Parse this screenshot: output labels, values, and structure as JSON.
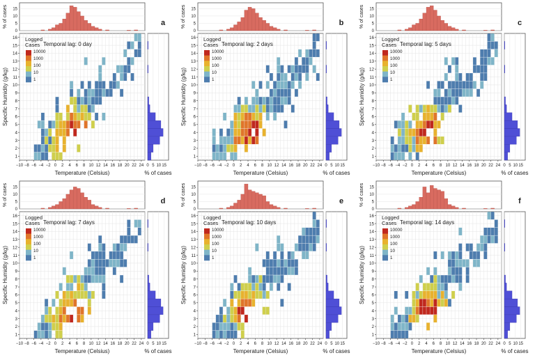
{
  "figure": {
    "x_axis_label": "Temperature (Celsius)",
    "y_axis_label": "Specific Humidity (g/kg)",
    "top_hist_label": "% of cases",
    "side_hist_label": "% of cases",
    "legend_title": "Logged\nCases",
    "legend_levels": [
      "10000",
      "1000",
      "100",
      "10",
      "1"
    ],
    "colors": {
      "scale": [
        "#4e7dae",
        "#7fb5c8",
        "#cfcf4c",
        "#e8b22e",
        "#e0752a",
        "#c0281e"
      ],
      "hist_top": "#d86b60",
      "hist_side": "#4f4fd6",
      "grid": "#e4e4e4",
      "frame": "#555555"
    }
  },
  "chart_data": [
    {
      "type": "heatmap",
      "panel_letter": "a",
      "lag_label": "Temporal lag: 0 day",
      "x_ticks": [
        -10,
        -8,
        -6,
        -4,
        -2,
        0,
        2,
        4,
        6,
        8,
        10,
        12,
        14,
        16,
        18,
        20,
        22,
        24
      ],
      "y_ticks": [
        1,
        2,
        3,
        4,
        5,
        6,
        7,
        8,
        9,
        10,
        11,
        12,
        13,
        14,
        15,
        16
      ],
      "top_hist_ticks": [
        0,
        5,
        10,
        15
      ],
      "side_hist_ticks": [
        0,
        5,
        10,
        15
      ],
      "xlim": [
        -10,
        25
      ],
      "ylim": [
        0.5,
        16.5
      ],
      "top_hist": {
        "x": [
          -4,
          -2,
          -1,
          0,
          1,
          2,
          3,
          4,
          5,
          6,
          7,
          8,
          9,
          10,
          11,
          12,
          14,
          20,
          22
        ],
        "values": [
          0.5,
          1,
          2,
          4,
          5,
          8,
          12,
          17,
          16,
          13,
          10,
          7,
          5,
          3,
          2,
          1,
          0.5,
          0.3,
          0.5
        ]
      },
      "side_hist": {
        "y": [
          1,
          2,
          3,
          4,
          5,
          6,
          7,
          8,
          12,
          15
        ],
        "values": [
          3,
          5,
          11,
          14,
          12,
          7,
          2,
          1,
          0.5,
          0.5
        ]
      }
    },
    {
      "type": "heatmap",
      "panel_letter": "b",
      "lag_label": "Temporal lag: 2 days",
      "x_ticks": [
        -10,
        -8,
        -6,
        -4,
        -2,
        0,
        2,
        4,
        6,
        8,
        10,
        12,
        14,
        16,
        18,
        20,
        22,
        24
      ],
      "y_ticks": [
        1,
        2,
        3,
        4,
        5,
        6,
        7,
        8,
        9,
        10,
        11,
        12,
        13,
        14,
        15,
        16
      ],
      "top_hist_ticks": [
        0,
        5,
        10,
        15
      ],
      "side_hist_ticks": [
        0,
        5,
        10,
        15
      ],
      "xlim": [
        -10,
        25
      ],
      "ylim": [
        0.5,
        16.5
      ],
      "top_hist": {
        "x": [
          -4,
          -2,
          -1,
          0,
          1,
          2,
          3,
          4,
          5,
          6,
          7,
          8,
          9,
          10,
          11,
          12,
          14,
          20,
          22
        ],
        "values": [
          0.5,
          1,
          2,
          4,
          6,
          9,
          14,
          16,
          15,
          12,
          9,
          7,
          5,
          3,
          2,
          1,
          0.5,
          0.3,
          0.5
        ]
      },
      "side_hist": {
        "y": [
          1,
          2,
          3,
          4,
          5,
          6,
          7,
          8,
          12,
          15
        ],
        "values": [
          3,
          5,
          11,
          14,
          12,
          7,
          2,
          1,
          0.5,
          0.5
        ]
      }
    },
    {
      "type": "heatmap",
      "panel_letter": "c",
      "lag_label": "Temporal lag: 5 days",
      "x_ticks": [
        -10,
        -8,
        -6,
        -4,
        -2,
        0,
        2,
        4,
        6,
        8,
        10,
        12,
        14,
        16,
        18,
        20,
        22,
        24
      ],
      "y_ticks": [
        1,
        2,
        3,
        4,
        5,
        6,
        7,
        8,
        9,
        10,
        11,
        12,
        13,
        14,
        15,
        16
      ],
      "top_hist_ticks": [
        0,
        5,
        10,
        15
      ],
      "side_hist_ticks": [
        0,
        5,
        10,
        15
      ],
      "xlim": [
        -10,
        25
      ],
      "ylim": [
        0.5,
        16.5
      ],
      "top_hist": {
        "x": [
          -4,
          -2,
          -1,
          0,
          1,
          2,
          3,
          4,
          5,
          6,
          7,
          8,
          9,
          10,
          11,
          12,
          14,
          20,
          22
        ],
        "values": [
          0.5,
          1,
          2,
          4,
          5,
          8,
          12,
          16,
          17,
          14,
          10,
          7,
          5,
          3,
          2,
          1,
          0.5,
          0.3,
          0.5
        ]
      },
      "side_hist": {
        "y": [
          1,
          2,
          3,
          4,
          5,
          6,
          7,
          8,
          12,
          15
        ],
        "values": [
          3,
          5,
          11,
          14,
          12,
          7,
          2,
          1,
          0.5,
          0.5
        ]
      }
    },
    {
      "type": "heatmap",
      "panel_letter": "d",
      "lag_label": "Temporal lag: 7 days",
      "x_ticks": [
        -10,
        -8,
        -6,
        -4,
        -2,
        0,
        2,
        4,
        6,
        8,
        10,
        12,
        14,
        16,
        18,
        20,
        22,
        24
      ],
      "y_ticks": [
        1,
        2,
        3,
        4,
        5,
        6,
        7,
        8,
        9,
        10,
        11,
        12,
        13,
        14,
        15,
        16
      ],
      "top_hist_ticks": [
        0,
        5,
        10,
        15
      ],
      "side_hist_ticks": [
        0,
        5,
        10,
        15
      ],
      "xlim": [
        -10,
        25
      ],
      "ylim": [
        0.5,
        16.5
      ],
      "top_hist": {
        "x": [
          -4,
          -2,
          -1,
          0,
          1,
          2,
          3,
          4,
          5,
          6,
          7,
          8,
          9,
          10,
          11,
          12,
          14,
          20,
          22
        ],
        "values": [
          0.5,
          1,
          2,
          3,
          5,
          7,
          10,
          13,
          15,
          14,
          11,
          8,
          6,
          3,
          2,
          1,
          0.5,
          0.3,
          0.5
        ]
      },
      "side_hist": {
        "y": [
          1,
          2,
          3,
          4,
          5,
          6,
          7,
          8,
          12,
          15
        ],
        "values": [
          3,
          5,
          11,
          14,
          12,
          7,
          2,
          1,
          0.5,
          0.5
        ]
      }
    },
    {
      "type": "heatmap",
      "panel_letter": "e",
      "lag_label": "Temporal lag: 10 days",
      "x_ticks": [
        -10,
        -8,
        -6,
        -4,
        -2,
        0,
        2,
        4,
        6,
        8,
        10,
        12,
        14,
        16,
        18,
        20,
        22,
        24
      ],
      "y_ticks": [
        1,
        2,
        3,
        4,
        5,
        6,
        7,
        8,
        9,
        10,
        11,
        12,
        13,
        14,
        15,
        16
      ],
      "top_hist_ticks": [
        0,
        5,
        10,
        15
      ],
      "side_hist_ticks": [
        0,
        5,
        10,
        15
      ],
      "xlim": [
        -10,
        25
      ],
      "ylim": [
        0.5,
        16.5
      ],
      "top_hist": {
        "x": [
          -4,
          -2,
          -1,
          0,
          1,
          2,
          3,
          4,
          5,
          6,
          7,
          8,
          9,
          10,
          11,
          12,
          14,
          20,
          22
        ],
        "values": [
          0.5,
          1,
          2,
          4,
          6,
          10,
          17,
          13,
          12,
          11,
          10,
          9,
          5,
          3,
          2,
          1,
          0.5,
          0.3,
          0.5
        ]
      },
      "side_hist": {
        "y": [
          1,
          2,
          3,
          4,
          5,
          6,
          7,
          8,
          12,
          15
        ],
        "values": [
          3,
          5,
          11,
          14,
          12,
          7,
          2,
          1,
          0.5,
          0.5
        ]
      }
    },
    {
      "type": "heatmap",
      "panel_letter": "f",
      "lag_label": "Temporal lag: 14 days",
      "x_ticks": [
        -10,
        -8,
        -6,
        -4,
        -2,
        0,
        2,
        4,
        6,
        8,
        10,
        12,
        14,
        16,
        18,
        20,
        22,
        24
      ],
      "y_ticks": [
        1,
        2,
        3,
        4,
        5,
        6,
        7,
        8,
        9,
        10,
        11,
        12,
        13,
        14,
        15,
        16
      ],
      "top_hist_ticks": [
        0,
        5,
        10,
        15
      ],
      "side_hist_ticks": [
        0,
        5,
        10,
        15
      ],
      "xlim": [
        -10,
        25
      ],
      "ylim": [
        0.5,
        16.5
      ],
      "top_hist": {
        "x": [
          -4,
          -2,
          -1,
          0,
          1,
          2,
          3,
          4,
          5,
          6,
          7,
          8,
          9,
          10,
          11,
          12,
          14,
          20,
          22
        ],
        "values": [
          0.5,
          1,
          2,
          3,
          5,
          8,
          15,
          11,
          16,
          14,
          13,
          12,
          7,
          3,
          2,
          1,
          0.5,
          0.3,
          0.5
        ]
      },
      "side_hist": {
        "y": [
          1,
          2,
          3,
          4,
          5,
          6,
          7,
          8,
          12,
          15
        ],
        "values": [
          3,
          5,
          11,
          14,
          12,
          7,
          2,
          1,
          0.5,
          0.5
        ]
      }
    }
  ]
}
